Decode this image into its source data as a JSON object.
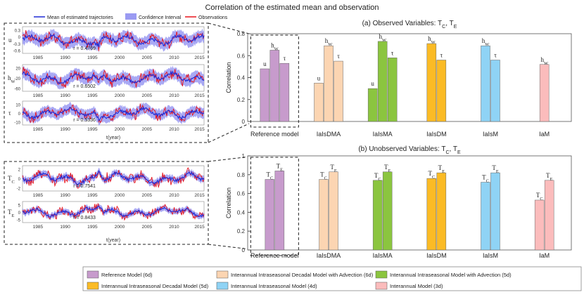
{
  "figure_title": "Correlation of the estimated mean and observation",
  "colors": {
    "ref": "#c79bcc",
    "idma": "#fcd5b2",
    "iima": "#8bc53f",
    "idm": "#fbbb25",
    "iim": "#8fd3f5",
    "im": "#fbbcbc",
    "mean_line": "#1f2bd6",
    "ci": "#9a9af2",
    "obs": "#e8141c"
  },
  "left_legend": {
    "mean": "Mean of estimated trajectories",
    "ci": "Confidence Interval",
    "obs": "Observations"
  },
  "left_panels": [
    {
      "name": "u",
      "ylabel": "u",
      "yticks": [
        "0.3",
        "0",
        "-0.3",
        "-0.6"
      ],
      "r_text": "r = 0.4769"
    },
    {
      "name": "hw",
      "ylabel": "h",
      "ylabel_sub": "W",
      "yticks": [
        "20",
        "-20",
        "-60"
      ],
      "r_text": "r = 0.6502"
    },
    {
      "name": "tau",
      "ylabel": "τ",
      "yticks": [
        "10",
        "0",
        "-10"
      ],
      "r_text": "r = 0.5336"
    },
    {
      "name": "tc",
      "ylabel": "T",
      "ylabel_sub": "C",
      "yticks": [
        "2",
        "0",
        "-2"
      ],
      "r_text": "r = 0.7541"
    },
    {
      "name": "te",
      "ylabel": "T",
      "ylabel_sub": "E",
      "yticks": [
        "5",
        "0",
        "-5"
      ],
      "r_text": "r = 0.8433"
    }
  ],
  "year_ticks": [
    "1985",
    "1990",
    "1995",
    "2000",
    "2005",
    "2010",
    "2015"
  ],
  "xlabel_left": "t(year)",
  "chart_data": [
    {
      "type": "bar",
      "title": "(a) Observed Variables: T",
      "title_subs": [
        "C",
        "E"
      ],
      "ylabel": "Correlation",
      "ylim": [
        0,
        0.8
      ],
      "yticks": [
        "0",
        "0.2",
        "0.4",
        "0.6",
        "0.8"
      ],
      "categories": [
        {
          "label": "Reference model",
          "key": "ref",
          "bars": [
            {
              "name": "u",
              "value": 0.48
            },
            {
              "name": "hW",
              "value": 0.65
            },
            {
              "name": "τ",
              "value": 0.53
            }
          ]
        },
        {
          "label": "IaIsDMA",
          "key": "idma",
          "bars": [
            {
              "name": "u",
              "value": 0.35
            },
            {
              "name": "hW",
              "value": 0.69
            },
            {
              "name": "τ",
              "value": 0.55
            }
          ]
        },
        {
          "label": "IaIsMA",
          "key": "iima",
          "bars": [
            {
              "name": "u",
              "value": 0.3
            },
            {
              "name": "hW",
              "value": 0.73
            },
            {
              "name": "τ",
              "value": 0.58
            }
          ]
        },
        {
          "label": "IaIsDM",
          "key": "idm",
          "bars": [
            {
              "name": "hW",
              "value": 0.71
            },
            {
              "name": "τ",
              "value": 0.56
            }
          ]
        },
        {
          "label": "IaIsM",
          "key": "iim",
          "bars": [
            {
              "name": "hW",
              "value": 0.69
            },
            {
              "name": "τ",
              "value": 0.56
            }
          ]
        },
        {
          "label": "IaM",
          "key": "im",
          "bars": [
            {
              "name": "hW",
              "value": 0.52
            }
          ]
        }
      ]
    },
    {
      "type": "bar",
      "title": "(b) Unobserved Variables: T",
      "title_subs": [
        "C",
        "E"
      ],
      "ylabel": "Correlation",
      "ylim": [
        0,
        1
      ],
      "yticks": [
        "0",
        "0.2",
        "0.4",
        "0.6",
        "0.8",
        "1"
      ],
      "categories": [
        {
          "label": "Reference model",
          "key": "ref",
          "bars": [
            {
              "name": "TC",
              "value": 0.75
            },
            {
              "name": "TE",
              "value": 0.84
            }
          ]
        },
        {
          "label": "IaIsDMA",
          "key": "idma",
          "bars": [
            {
              "name": "TC",
              "value": 0.75
            },
            {
              "name": "TE",
              "value": 0.83
            }
          ]
        },
        {
          "label": "IaIsMA",
          "key": "iima",
          "bars": [
            {
              "name": "TC",
              "value": 0.74
            },
            {
              "name": "TE",
              "value": 0.83
            }
          ]
        },
        {
          "label": "IaIsDM",
          "key": "idm",
          "bars": [
            {
              "name": "TC",
              "value": 0.76
            },
            {
              "name": "TE",
              "value": 0.82
            }
          ]
        },
        {
          "label": "IaIsM",
          "key": "iim",
          "bars": [
            {
              "name": "TC",
              "value": 0.72
            },
            {
              "name": "TE",
              "value": 0.82
            }
          ]
        },
        {
          "label": "IaM",
          "key": "im",
          "bars": [
            {
              "name": "TC",
              "value": 0.53
            },
            {
              "name": "TE",
              "value": 0.74
            }
          ]
        }
      ]
    }
  ],
  "legend": [
    {
      "label": "Reference Model (6d)",
      "key": "ref"
    },
    {
      "label": "Interannual Intraseasonal Decadal Model with Advection (6d)",
      "key": "idma"
    },
    {
      "label": "Interannual Intraseasonal Model with Advection (5d)",
      "key": "iima"
    },
    {
      "label": "Interannual Intraseasonal Decadal Model (5d)",
      "key": "idm"
    },
    {
      "label": "Interannual Intraseasonal Model (4d)",
      "key": "iim"
    },
    {
      "label": "Interannual Model (3d)",
      "key": "im"
    }
  ]
}
